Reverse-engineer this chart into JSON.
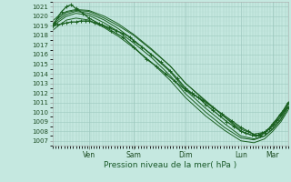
{
  "xlabel": "Pression niveau de la mer( hPa )",
  "bg_color": "#c5e8e0",
  "grid_major_color": "#9dc8be",
  "grid_minor_color": "#b8ddd7",
  "line_color": "#1a6020",
  "ylim": [
    1006.5,
    1021.5
  ],
  "ytick_min": 1007,
  "ytick_max": 1021,
  "day_labels": [
    "Ven",
    "Sam",
    "Dim",
    "Lun",
    "Mar"
  ],
  "day_positions": [
    0.155,
    0.345,
    0.565,
    0.8,
    0.935
  ],
  "lines": [
    {
      "x": [
        0.0,
        0.01,
        0.025,
        0.04,
        0.06,
        0.08,
        0.1,
        0.13,
        0.155,
        0.2,
        0.25,
        0.3,
        0.345,
        0.4,
        0.44,
        0.48,
        0.52,
        0.565,
        0.6,
        0.64,
        0.68,
        0.72,
        0.76,
        0.8,
        0.83,
        0.86,
        0.88,
        0.9,
        0.92,
        0.935,
        0.95,
        0.97,
        1.0
      ],
      "y": [
        1019.0,
        1019.3,
        1020.0,
        1020.5,
        1021.0,
        1021.2,
        1020.8,
        1020.3,
        1019.8,
        1019.2,
        1018.5,
        1017.8,
        1016.8,
        1015.5,
        1014.8,
        1014.0,
        1013.2,
        1012.3,
        1011.8,
        1011.2,
        1010.5,
        1009.8,
        1009.1,
        1008.4,
        1008.0,
        1007.6,
        1007.5,
        1007.8,
        1008.3,
        1008.8,
        1009.2,
        1009.8,
        1010.5
      ],
      "lw": 0.9,
      "marker": "+"
    },
    {
      "x": [
        0.0,
        0.025,
        0.06,
        0.1,
        0.155,
        0.22,
        0.28,
        0.345,
        0.42,
        0.5,
        0.565,
        0.65,
        0.73,
        0.8,
        0.855,
        0.9,
        0.935,
        0.97,
        1.0
      ],
      "y": [
        1019.2,
        1019.8,
        1020.4,
        1020.6,
        1020.5,
        1019.8,
        1019.0,
        1018.0,
        1016.5,
        1014.8,
        1013.0,
        1011.2,
        1009.5,
        1008.0,
        1007.5,
        1007.8,
        1008.5,
        1009.5,
        1010.8
      ],
      "lw": 0.7,
      "marker": null
    },
    {
      "x": [
        0.0,
        0.025,
        0.06,
        0.1,
        0.155,
        0.22,
        0.28,
        0.345,
        0.42,
        0.5,
        0.565,
        0.65,
        0.73,
        0.8,
        0.855,
        0.9,
        0.935,
        0.97,
        1.0
      ],
      "y": [
        1019.0,
        1019.6,
        1020.2,
        1020.5,
        1020.3,
        1019.6,
        1018.7,
        1017.5,
        1016.0,
        1014.2,
        1012.3,
        1010.4,
        1008.8,
        1007.5,
        1007.2,
        1007.5,
        1008.3,
        1009.3,
        1010.6
      ],
      "lw": 0.7,
      "marker": null
    },
    {
      "x": [
        0.0,
        0.025,
        0.06,
        0.1,
        0.155,
        0.22,
        0.28,
        0.345,
        0.42,
        0.5,
        0.565,
        0.65,
        0.73,
        0.8,
        0.855,
        0.9,
        0.935,
        0.97,
        1.0
      ],
      "y": [
        1018.8,
        1019.4,
        1020.0,
        1020.3,
        1020.1,
        1019.3,
        1018.4,
        1017.2,
        1015.7,
        1013.8,
        1011.9,
        1010.0,
        1008.4,
        1007.3,
        1007.1,
        1007.5,
        1008.2,
        1009.2,
        1010.4
      ],
      "lw": 0.7,
      "marker": null
    },
    {
      "x": [
        0.0,
        0.025,
        0.06,
        0.1,
        0.155,
        0.22,
        0.28,
        0.345,
        0.42,
        0.5,
        0.565,
        0.65,
        0.73,
        0.8,
        0.855,
        0.9,
        0.935,
        0.97,
        1.0
      ],
      "y": [
        1019.5,
        1020.0,
        1020.5,
        1020.7,
        1020.6,
        1020.0,
        1019.2,
        1018.1,
        1016.6,
        1014.8,
        1013.0,
        1011.1,
        1009.5,
        1008.2,
        1007.7,
        1007.9,
        1008.6,
        1009.6,
        1010.9
      ],
      "lw": 0.7,
      "marker": null
    },
    {
      "x": [
        0.0,
        0.025,
        0.06,
        0.1,
        0.155,
        0.22,
        0.28,
        0.345,
        0.42,
        0.5,
        0.565,
        0.65,
        0.73,
        0.8,
        0.855,
        0.9,
        0.935,
        0.97,
        1.0
      ],
      "y": [
        1018.5,
        1019.0,
        1019.6,
        1019.8,
        1019.6,
        1018.8,
        1017.9,
        1016.7,
        1015.2,
        1013.3,
        1011.5,
        1009.6,
        1008.1,
        1007.0,
        1006.8,
        1007.2,
        1008.0,
        1009.0,
        1010.2
      ],
      "lw": 0.7,
      "marker": null
    },
    {
      "x": [
        0.0,
        0.02,
        0.04,
        0.06,
        0.08,
        0.1,
        0.12,
        0.14,
        0.155,
        0.18,
        0.21,
        0.24,
        0.27,
        0.3,
        0.33,
        0.345,
        0.38,
        0.42,
        0.46,
        0.5,
        0.53,
        0.565,
        0.59,
        0.62,
        0.65,
        0.68,
        0.71,
        0.74,
        0.77,
        0.8,
        0.82,
        0.845,
        0.86,
        0.875,
        0.89,
        0.905,
        0.92,
        0.935,
        0.95,
        0.965,
        0.98,
        1.0
      ],
      "y": [
        1019.0,
        1019.1,
        1019.2,
        1019.3,
        1019.4,
        1019.4,
        1019.5,
        1019.5,
        1019.5,
        1019.3,
        1019.1,
        1018.8,
        1018.5,
        1018.2,
        1017.8,
        1017.4,
        1016.8,
        1016.0,
        1015.2,
        1014.3,
        1013.5,
        1012.5,
        1012.0,
        1011.5,
        1010.8,
        1010.2,
        1009.6,
        1009.0,
        1008.5,
        1008.0,
        1007.8,
        1007.6,
        1007.5,
        1007.6,
        1007.8,
        1008.0,
        1008.3,
        1008.7,
        1009.2,
        1009.7,
        1010.2,
        1011.0
      ],
      "lw": 0.9,
      "marker": "+"
    }
  ]
}
